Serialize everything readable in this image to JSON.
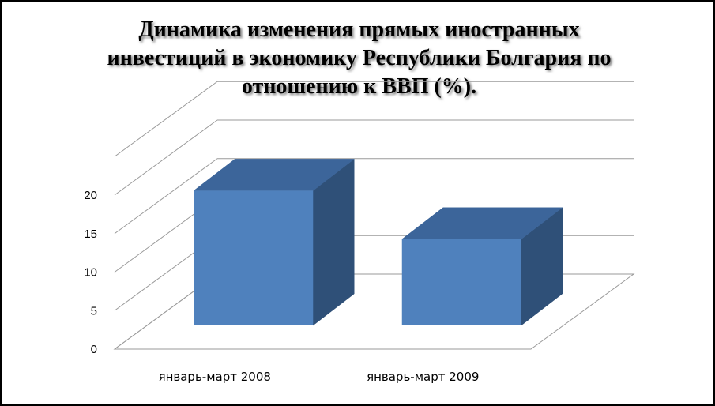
{
  "chart_data": {
    "type": "bar",
    "title": "Динамика изменения прямых иностранных\nинвестиций  в экономику Республики Болгария по\nотношению к ВВП (%).",
    "categories": [
      "январь-март 2008",
      "январь-март 2009"
    ],
    "values": [
      17.5,
      11.2
    ],
    "ylim": [
      0,
      20
    ],
    "yticks": [
      "0",
      "5",
      "10",
      "15",
      "20"
    ],
    "grid": true,
    "legend": "none",
    "bar_color": "#4F81BD",
    "bar_top_color": "#3C659A",
    "bar_side_color": "#2F5078"
  }
}
